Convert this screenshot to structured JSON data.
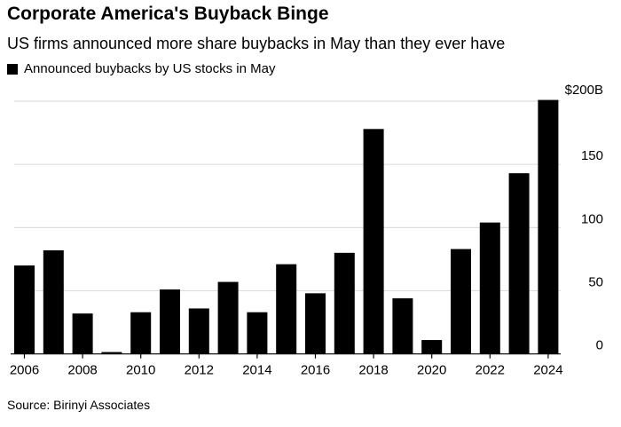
{
  "chart_data": {
    "type": "bar",
    "title": "Corporate America's Buyback Binge",
    "subtitle": "US firms announced more share buybacks in May than they ever have",
    "legend": [
      "Announced buybacks by US stocks in May"
    ],
    "legend_position": "top-left",
    "source": "Source: Birinyi Associates",
    "categories": [
      "2006",
      "2007",
      "2008",
      "2009",
      "2010",
      "2011",
      "2012",
      "2013",
      "2014",
      "2015",
      "2016",
      "2017",
      "2018",
      "2019",
      "2020",
      "2021",
      "2022",
      "2023",
      "2024"
    ],
    "values": [
      70,
      82,
      32,
      1.5,
      33,
      51,
      36,
      57,
      33,
      71,
      48,
      80,
      178,
      44,
      11,
      83,
      104,
      143,
      201
    ],
    "xticks": [
      "2006",
      "2008",
      "2010",
      "2012",
      "2014",
      "2016",
      "2018",
      "2020",
      "2022",
      "2024"
    ],
    "yticks": [
      {
        "value": 0,
        "label": "0"
      },
      {
        "value": 50,
        "label": "50"
      },
      {
        "value": 100,
        "label": "100"
      },
      {
        "value": 150,
        "label": "150"
      },
      {
        "value": 200,
        "label": "$200B"
      }
    ],
    "ylim": [
      0,
      200
    ],
    "ylabel": "",
    "xlabel": "",
    "grid": true,
    "y_axis_side": "right",
    "bar_color": "#000000",
    "grid_color": "#dddddd"
  }
}
